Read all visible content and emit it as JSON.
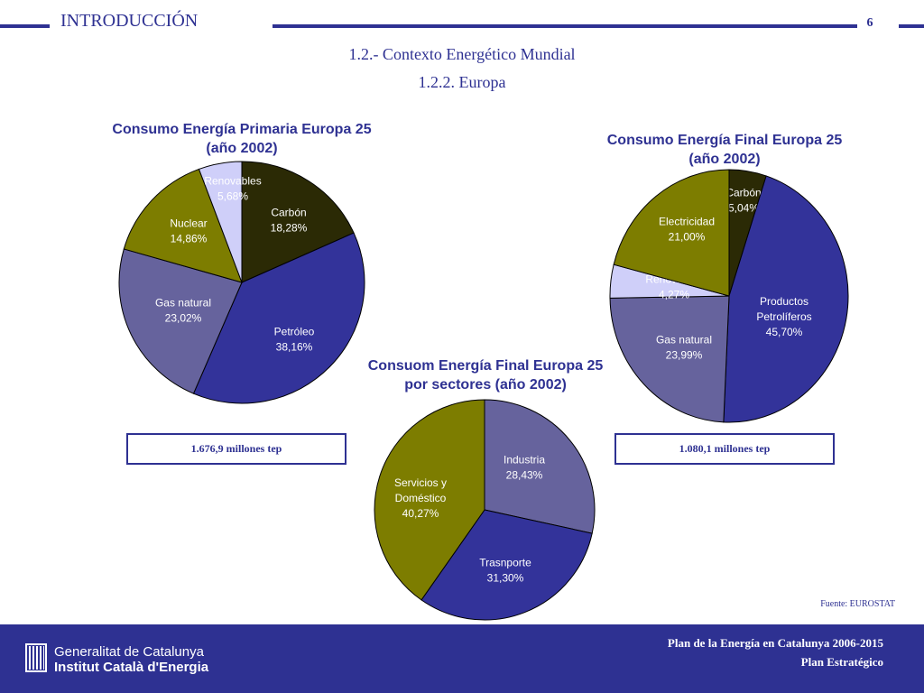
{
  "header": {
    "section_title": "INTRODUCCIÓN",
    "page_number": "6",
    "subtitle_1": "1.2.- Contexto Energético Mundial",
    "subtitle_2": "1.2.2. Europa"
  },
  "colors": {
    "accent": "#2e3192",
    "carbon": "#2b2a05",
    "petroleo": "#33339a",
    "gas": "#66639d",
    "nuclear": "#7d7d00",
    "renovables": "#cfcff9",
    "electricidad": "#7d7d00"
  },
  "chart_data": [
    {
      "type": "pie",
      "title_line1": "Consumo Energía Primaria Europa 25",
      "title_line2": "(año 2002)",
      "total": "1.676,9 millones tep",
      "slices": [
        {
          "name": "Carbón",
          "value": 18.28,
          "label": "18,28%",
          "color": "#2b2a05",
          "text_color": "#ffffff"
        },
        {
          "name": "Petróleo",
          "value": 38.16,
          "label": "38,16%",
          "color": "#33339a",
          "text_color": "#ffffff"
        },
        {
          "name": "Gas natural",
          "value": 23.02,
          "label": "23,02%",
          "color": "#66639d",
          "text_color": "#ffffff"
        },
        {
          "name": "Nuclear",
          "value": 14.86,
          "label": "14,86%",
          "color": "#7d7d00",
          "text_color": "#ffffff"
        },
        {
          "name": "Renovables",
          "value": 5.68,
          "label": "5,68%",
          "color": "#cfcff9",
          "text_color": "#ffffff"
        }
      ]
    },
    {
      "type": "pie",
      "title_line1": "Consumo Energía Final Europa 25",
      "title_line2": "(año 2002)",
      "total": "1.080,1 millones tep",
      "slices": [
        {
          "name": "Carbón",
          "value": 5.04,
          "label": "5,04%",
          "color": "#2b2a05",
          "text_color": "#ffffff"
        },
        {
          "name": "Productos Petrolíferos",
          "value": 45.7,
          "label": "45,70%",
          "color": "#33339a",
          "text_color": "#ffffff"
        },
        {
          "name": "Gas natural",
          "value": 23.99,
          "label": "23,99%",
          "color": "#66639d",
          "text_color": "#ffffff"
        },
        {
          "name": "Renovables",
          "value": 4.27,
          "label": "4,27%",
          "color": "#cfcff9",
          "text_color": "#ffffff"
        },
        {
          "name": "Electricidad",
          "value": 21.0,
          "label": "21,00%",
          "color": "#7d7d00",
          "text_color": "#ffffff"
        }
      ]
    },
    {
      "type": "pie",
      "title_line1": "Consuom Energía Final Europa 25",
      "title_line2": "por sectores (año 2002)",
      "slices": [
        {
          "name": "Industria",
          "value": 28.43,
          "label": "28,43%",
          "color": "#66639d",
          "text_color": "#ffffff"
        },
        {
          "name": "Trasnporte",
          "value": 31.3,
          "label": "31,30%",
          "color": "#33339a",
          "text_color": "#ffffff"
        },
        {
          "name": "Servicios y Doméstico",
          "value": 40.27,
          "label": "40,27%",
          "color": "#7d7d00",
          "text_color": "#ffffff"
        }
      ]
    }
  ],
  "source": "Fuente: EUROSTAT",
  "footer": {
    "org_line1": "Generalitat de Catalunya",
    "org_line2": "Institut Català d'Energia",
    "plan_line1": "Plan de la Energía en Catalunya 2006-2015",
    "plan_line2": "Plan Estratégico"
  }
}
